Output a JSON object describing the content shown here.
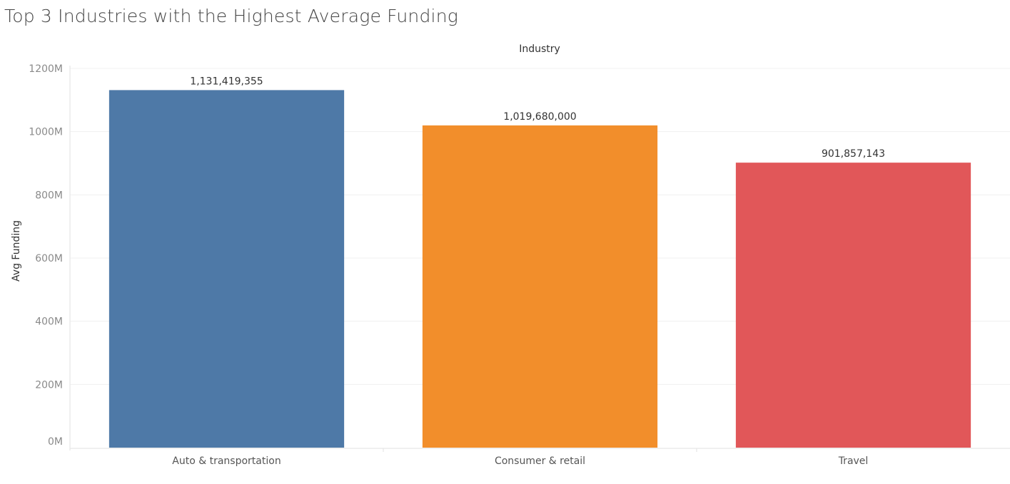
{
  "chart_data": {
    "type": "bar",
    "title": "Top 3 Industries with the Highest Average Funding",
    "column_header": "Industry",
    "ylabel": "Avg Funding",
    "categories": [
      "Auto & transportation",
      "Consumer & retail",
      "Travel"
    ],
    "values": [
      1131419355,
      1019680000,
      901857143
    ],
    "value_labels": [
      "1,131,419,355",
      "1,019,680,000",
      "901,857,143"
    ],
    "colors": [
      "#4e79a7",
      "#f28e2b",
      "#e15759"
    ],
    "ylim": [
      0,
      1200000000
    ],
    "y_ticks": [
      {
        "value": 0,
        "label": "0M"
      },
      {
        "value": 200000000,
        "label": "200M"
      },
      {
        "value": 400000000,
        "label": "400M"
      },
      {
        "value": 600000000,
        "label": "600M"
      },
      {
        "value": 800000000,
        "label": "800M"
      },
      {
        "value": 1000000000,
        "label": "1000M"
      },
      {
        "value": 1200000000,
        "label": "1200M"
      }
    ],
    "grid": true,
    "legend": "none"
  }
}
